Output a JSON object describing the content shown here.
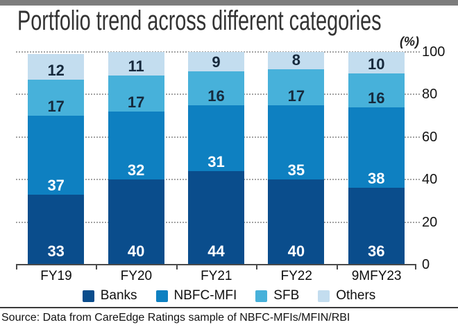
{
  "header": {
    "title": "Portfolio trend across different categories",
    "unit_label": "(%)"
  },
  "chart_data": {
    "type": "bar",
    "stacked": true,
    "orientation": "vertical",
    "categories": [
      "FY19",
      "FY20",
      "FY21",
      "FY22",
      "9MFY23"
    ],
    "series": [
      {
        "name": "Banks",
        "color": "#0a4d8c",
        "label_color": "#ffffff",
        "values": [
          33,
          40,
          44,
          40,
          36
        ]
      },
      {
        "name": "NBFC-MFI",
        "color": "#0e80c1",
        "label_color": "#ffffff",
        "values": [
          37,
          32,
          31,
          35,
          38
        ]
      },
      {
        "name": "SFB",
        "color": "#47b1da",
        "label_color": "#16293c",
        "values": [
          17,
          17,
          16,
          17,
          16
        ]
      },
      {
        "name": "Others",
        "color": "#c3ddef",
        "label_color": "#16293c",
        "values": [
          12,
          11,
          9,
          8,
          10
        ]
      }
    ],
    "ylim": [
      0,
      100
    ],
    "y_ticks": [
      0,
      20,
      40,
      60,
      80,
      100
    ],
    "unit": "(%)",
    "grid": "dotted-horizontal",
    "y_axis_side": "right",
    "legend_position": "bottom",
    "value_labels": "inside-bottom"
  },
  "footer": {
    "source": "Source: Data from CareEdge Ratings sample of NBFC-MFIs/MFIN/RBI"
  }
}
